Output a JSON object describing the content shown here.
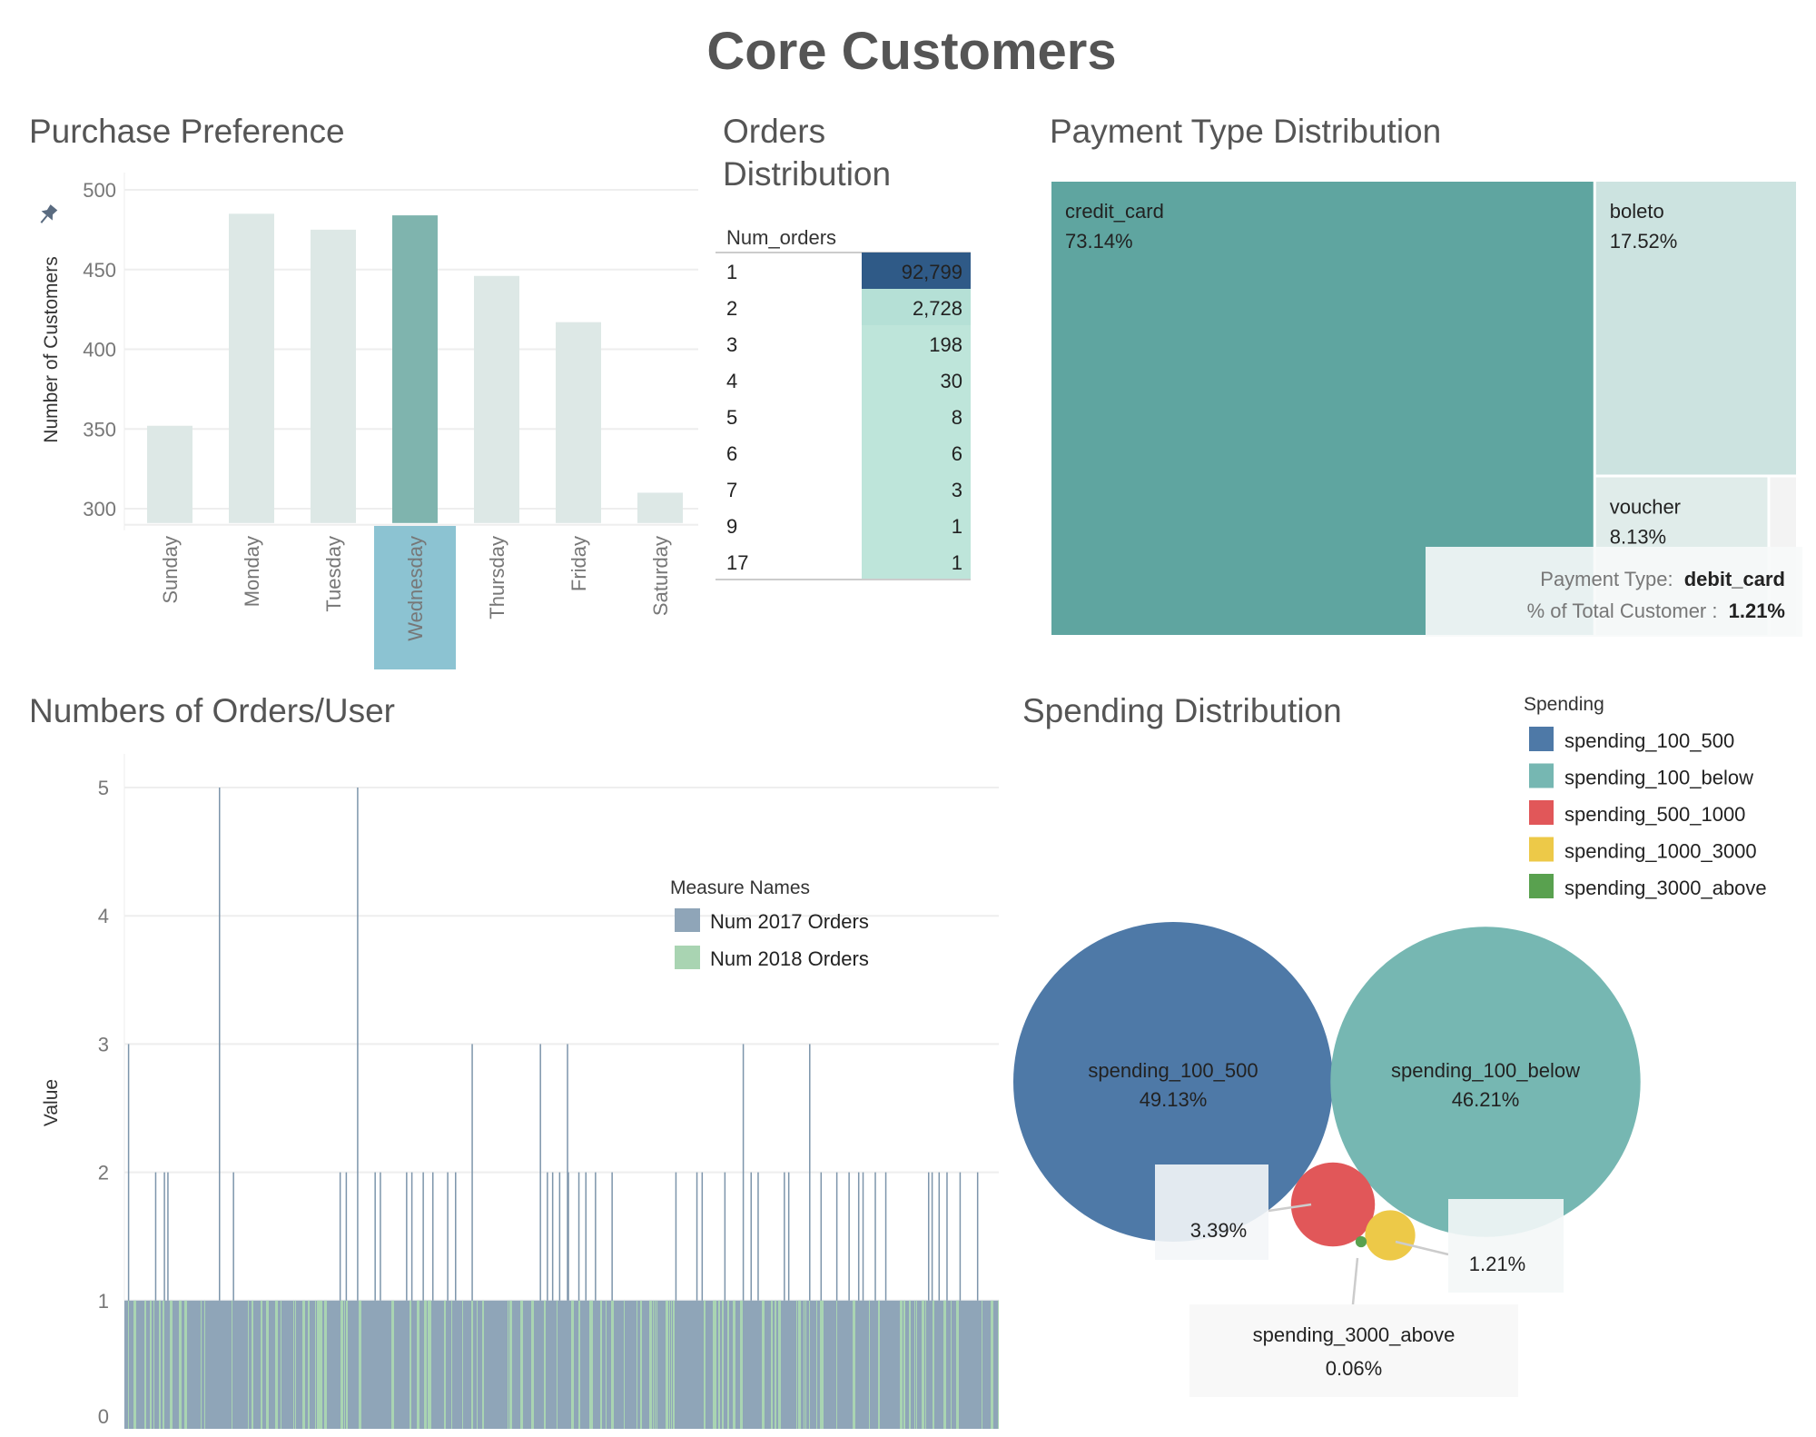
{
  "dashboard": {
    "title": "Core Customers"
  },
  "chart_data": [
    {
      "type": "bar",
      "title": "Purchase Preference",
      "ylabel": "Number of Customers",
      "categories": [
        "Sunday",
        "Monday",
        "Tuesday",
        "Wednesday",
        "Thursday",
        "Friday",
        "Saturday"
      ],
      "values": [
        352,
        485,
        475,
        484,
        446,
        417,
        310
      ],
      "highlighted": "Wednesday",
      "yticks": [
        300,
        350,
        400,
        450,
        500
      ],
      "ylim": [
        291,
        509
      ],
      "grid": true,
      "colors": {
        "bar": "#dde8e6",
        "highlight": "#7fb4ae",
        "highlight_label_bg": "#8cc3d2"
      }
    },
    {
      "type": "table",
      "title": "Orders Distribution",
      "column_header": "Num_orders",
      "rows": [
        {
          "label": "1",
          "value": "92,799"
        },
        {
          "label": "2",
          "value": "2,728"
        },
        {
          "label": "3",
          "value": "198"
        },
        {
          "label": "4",
          "value": "30"
        },
        {
          "label": "5",
          "value": "8"
        },
        {
          "label": "6",
          "value": "6"
        },
        {
          "label": "7",
          "value": "3"
        },
        {
          "label": "9",
          "value": "1"
        },
        {
          "label": "17",
          "value": "1"
        }
      ],
      "colors": {
        "high": "#2f5a87",
        "low": "#bee5da",
        "mid": "#b5e0d6"
      }
    },
    {
      "type": "treemap",
      "title": "Payment Type Distribution",
      "items": [
        {
          "name": "credit_card",
          "percent": "73.14%",
          "value": 73.14,
          "color": "#5fa5a0"
        },
        {
          "name": "boleto",
          "percent": "17.52%",
          "value": 17.52,
          "color": "#cce3e0"
        },
        {
          "name": "voucher",
          "percent": "8.13%",
          "value": 8.13,
          "color": "#e0ecea"
        },
        {
          "name": "debit_card",
          "percent": "1.21%",
          "value": 1.21,
          "color": "#f3f3f3"
        }
      ],
      "tooltip": {
        "label1": "Payment Type:",
        "value1": "debit_card",
        "label2": "% of Total Customer :",
        "value2": "1.21%"
      }
    },
    {
      "type": "bar",
      "title": "Numbers of Orders/User",
      "ylabel": "Value",
      "yticks": [
        0,
        1,
        2,
        3,
        4,
        5
      ],
      "ylim": [
        0,
        5.3
      ],
      "grid": true,
      "legend": {
        "title": "Measure Names",
        "placement": "top-right"
      },
      "series": [
        {
          "name": "Num 2017 Orders",
          "color": "#8fa5b8"
        },
        {
          "name": "Num 2018 Orders",
          "color": "#a9d4b2"
        }
      ],
      "baseline_value": 1,
      "spikes": [
        {
          "x": 108,
          "y": 5
        },
        {
          "x": 266,
          "y": 5
        },
        {
          "x": 4,
          "y": 3
        },
        {
          "x": 397,
          "y": 3
        },
        {
          "x": 475,
          "y": 3
        },
        {
          "x": 506,
          "y": 3
        },
        {
          "x": 707,
          "y": 3
        },
        {
          "x": 783,
          "y": 3
        },
        {
          "x": 35,
          "y": 2
        },
        {
          "x": 45,
          "y": 2
        },
        {
          "x": 49,
          "y": 2
        },
        {
          "x": 124,
          "y": 2
        },
        {
          "x": 246,
          "y": 2
        },
        {
          "x": 253,
          "y": 2
        },
        {
          "x": 286,
          "y": 2
        },
        {
          "x": 292,
          "y": 2
        },
        {
          "x": 322,
          "y": 2
        },
        {
          "x": 328,
          "y": 2
        },
        {
          "x": 341,
          "y": 2
        },
        {
          "x": 352,
          "y": 2
        },
        {
          "x": 369,
          "y": 2
        },
        {
          "x": 378,
          "y": 2
        },
        {
          "x": 483,
          "y": 2
        },
        {
          "x": 489,
          "y": 2
        },
        {
          "x": 497,
          "y": 2
        },
        {
          "x": 507,
          "y": 2
        },
        {
          "x": 519,
          "y": 2
        },
        {
          "x": 527,
          "y": 2
        },
        {
          "x": 538,
          "y": 2
        },
        {
          "x": 557,
          "y": 2
        },
        {
          "x": 630,
          "y": 2
        },
        {
          "x": 654,
          "y": 2
        },
        {
          "x": 660,
          "y": 2
        },
        {
          "x": 686,
          "y": 2
        },
        {
          "x": 716,
          "y": 2
        },
        {
          "x": 724,
          "y": 2
        },
        {
          "x": 754,
          "y": 2
        },
        {
          "x": 759,
          "y": 2
        },
        {
          "x": 796,
          "y": 2
        },
        {
          "x": 814,
          "y": 2
        },
        {
          "x": 828,
          "y": 2
        },
        {
          "x": 839,
          "y": 2
        },
        {
          "x": 844,
          "y": 2
        },
        {
          "x": 858,
          "y": 2
        },
        {
          "x": 870,
          "y": 2
        },
        {
          "x": 919,
          "y": 2
        },
        {
          "x": 923,
          "y": 2
        },
        {
          "x": 931,
          "y": 2
        },
        {
          "x": 940,
          "y": 2
        },
        {
          "x": 955,
          "y": 2
        },
        {
          "x": 975,
          "y": 2
        }
      ],
      "xlim": [
        0,
        1000
      ]
    },
    {
      "type": "bubble",
      "title": "Spending Distribution",
      "legend": {
        "title": "Spending",
        "placement": "top-right"
      },
      "items": [
        {
          "name": "spending_100_500",
          "percent": "49.13%",
          "value": 49.13,
          "color": "#4e79a7"
        },
        {
          "name": "spending_100_below",
          "percent": "46.21%",
          "value": 46.21,
          "color": "#76b7b2"
        },
        {
          "name": "spending_500_1000",
          "percent": "3.39%",
          "value": 3.39,
          "color": "#e15759"
        },
        {
          "name": "spending_1000_3000",
          "percent": "1.21%",
          "value": 1.21,
          "color": "#edc948"
        },
        {
          "name": "spending_3000_above",
          "percent": "0.06%",
          "value": 0.06,
          "color": "#59a14f"
        }
      ]
    }
  ]
}
